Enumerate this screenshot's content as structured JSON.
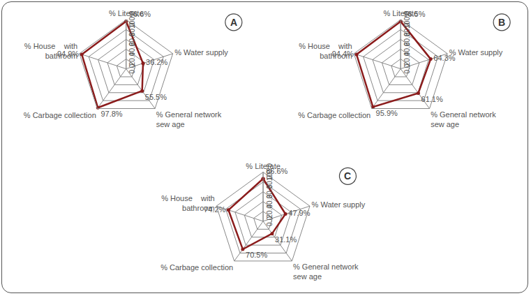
{
  "chart_data": [
    {
      "type": "radar",
      "title": "A",
      "categories": [
        "% Literate",
        "% Water supply",
        "% General network\nsew age",
        "% Carbage collection",
        "% House    with\nbathroom"
      ],
      "values": [
        96.6,
        36.2,
        55.5,
        97.8,
        94.9
      ],
      "value_labels": [
        "96.6%",
        "36.2%",
        "55.5%",
        "97.8%",
        "94.9%"
      ],
      "color": "#8b1c1c",
      "marker": "circle",
      "data_labels": true,
      "grid": true,
      "ylim": [
        0,
        100
      ],
      "yticks": [
        {
          "value": 0,
          "label": "0.0"
        },
        {
          "value": 20,
          "label": "20.0"
        },
        {
          "value": 40,
          "label": "40.0"
        },
        {
          "value": 60,
          "label": "60.0"
        },
        {
          "value": 80,
          "label": "80.0"
        },
        {
          "value": 100,
          "label": "100.0"
        }
      ]
    },
    {
      "type": "radar",
      "title": "B",
      "categories": [
        "% Literate",
        "% Water supply",
        "% General network\nsew age",
        "% Carbage collection",
        "% House    with\nbathroom"
      ],
      "values": [
        96.5,
        64.3,
        61.1,
        95.9,
        94.4
      ],
      "value_labels": [
        "96.5%",
        "64.3%",
        "61.1%",
        "95.9%",
        "94.4%"
      ],
      "color": "#8b1c1c",
      "marker": "circle",
      "data_labels": true,
      "grid": true,
      "ylim": [
        0,
        100
      ],
      "yticks": [
        {
          "value": 0,
          "label": "0.0"
        },
        {
          "value": 20,
          "label": "20.0"
        },
        {
          "value": 40,
          "label": "40.0"
        },
        {
          "value": 60,
          "label": "60.0"
        },
        {
          "value": 80,
          "label": "80.0"
        },
        {
          "value": 100,
          "label": "100.0"
        }
      ]
    },
    {
      "type": "radar",
      "title": "C",
      "categories": [
        "% Literate",
        "% Water supply",
        "% General network\nsew age",
        "% Carbage collection",
        "% House    with\nbathroom"
      ],
      "values": [
        86.6,
        47.9,
        31.1,
        70.5,
        74.2
      ],
      "value_labels": [
        "86.6%",
        "47.9%",
        "31.1%",
        "70.5%",
        "74.2%"
      ],
      "color": "#8b1c1c",
      "marker": "circle",
      "data_labels": true,
      "grid": true,
      "ylim": [
        0,
        100
      ],
      "yticks": [
        {
          "value": 0,
          "label": "0.0"
        },
        {
          "value": 20,
          "label": "20.0"
        },
        {
          "value": 40,
          "label": "40.0"
        },
        {
          "value": 60,
          "label": "60.0"
        },
        {
          "value": 80,
          "label": "80.0"
        },
        {
          "value": 100,
          "label": "100.0"
        }
      ]
    }
  ]
}
